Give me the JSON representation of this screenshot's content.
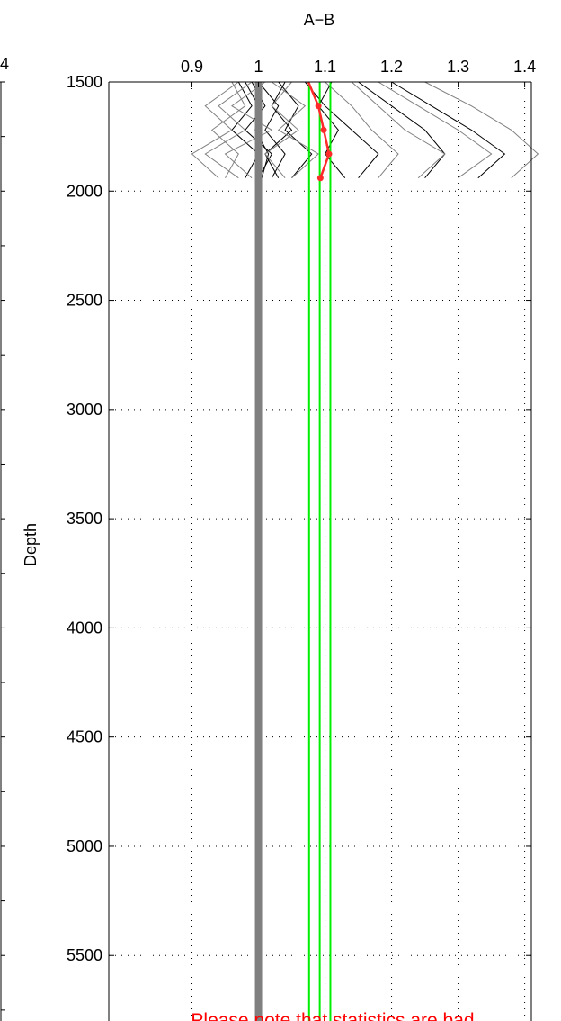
{
  "chart_data": {
    "type": "line",
    "title": "A−B",
    "xlabel": "",
    "ylabel": "Depth",
    "xlim": [
      0.775,
      1.41
    ],
    "ylim": [
      1500,
      5800
    ],
    "y_reversed": true,
    "x_axis_position": "top",
    "xticks": [
      0.9,
      1,
      1.1,
      1.2,
      1.3,
      1.4
    ],
    "xtick_labels": [
      "0.9",
      "1",
      "1.1",
      "1.2",
      "1.3",
      "1.4"
    ],
    "yticks": [
      1500,
      2000,
      2500,
      3000,
      3500,
      4000,
      4500,
      5000,
      5500
    ],
    "ytick_labels": [
      "1500",
      "2000",
      "2500",
      "3000",
      "3500",
      "4000",
      "4500",
      "5000",
      "5500"
    ],
    "grid": true,
    "left_panel_tick_label": "4",
    "note": "Please note that statistics are bad",
    "reference_lines": [
      {
        "x": 1.0,
        "color": "#808080"
      },
      {
        "x": 1.076,
        "color": "#00ee00"
      },
      {
        "x": 1.092,
        "color": "#00ee00"
      },
      {
        "x": 1.108,
        "color": "#00ee00"
      }
    ],
    "mean_profile": {
      "color": "#ff2a2a",
      "depth": [
        1500,
        1610,
        1720,
        1830,
        1940
      ],
      "x": [
        1.075,
        1.09,
        1.098,
        1.106,
        1.093
      ]
    },
    "individual_profiles": [
      {
        "color": "#000000",
        "depth": [
          1500,
          1610,
          1720,
          1830,
          1940
        ],
        "x": [
          0.99,
          1.01,
          0.98,
          1.02,
          1.0
        ]
      },
      {
        "color": "#000000",
        "depth": [
          1500,
          1610,
          1720,
          1830,
          1940
        ],
        "x": [
          1.03,
          1.06,
          1.04,
          1.08,
          1.05
        ]
      },
      {
        "color": "#000000",
        "depth": [
          1500,
          1610,
          1720,
          1830,
          1940
        ],
        "x": [
          1.11,
          1.09,
          1.12,
          1.1,
          1.13
        ]
      },
      {
        "color": "#000000",
        "depth": [
          1500,
          1610,
          1720,
          1830,
          1940
        ],
        "x": [
          1.04,
          1.02,
          1.05,
          1.01,
          1.03
        ]
      },
      {
        "color": "#000000",
        "depth": [
          1500,
          1610,
          1720,
          1830,
          1940
        ],
        "x": [
          0.97,
          0.99,
          0.96,
          1.0,
          0.98
        ]
      },
      {
        "color": "#000000",
        "depth": [
          1500,
          1610,
          1720,
          1830,
          1940
        ],
        "x": [
          1.15,
          1.2,
          1.25,
          1.28,
          1.25
        ]
      },
      {
        "color": "#000000",
        "depth": [
          1500,
          1610,
          1720,
          1830,
          1940
        ],
        "x": [
          1.2,
          1.26,
          1.32,
          1.37,
          1.33
        ]
      },
      {
        "color": "#000000",
        "depth": [
          1500,
          1610,
          1720,
          1830,
          1940
        ],
        "x": [
          1.07,
          1.1,
          1.14,
          1.18,
          1.15
        ]
      },
      {
        "color": "#000000",
        "depth": [
          1500,
          1610,
          1720,
          1830,
          1940
        ],
        "x": [
          1.0,
          1.03,
          1.01,
          1.04,
          1.02
        ]
      },
      {
        "color": "#000000",
        "depth": [
          1500,
          1610,
          1720,
          1830,
          1940
        ],
        "x": [
          0.98,
          1.0,
          0.995,
          1.015,
          1.005
        ]
      },
      {
        "color": "#808080",
        "depth": [
          1500,
          1610,
          1720,
          1830,
          1940
        ],
        "x": [
          0.97,
          0.92,
          0.96,
          0.9,
          0.94
        ]
      },
      {
        "color": "#808080",
        "depth": [
          1500,
          1610,
          1720,
          1830,
          1940
        ],
        "x": [
          1.01,
          0.96,
          1.02,
          0.95,
          0.99
        ]
      },
      {
        "color": "#808080",
        "depth": [
          1500,
          1610,
          1720,
          1830,
          1940
        ],
        "x": [
          1.05,
          1.02,
          1.06,
          1.01,
          1.04
        ]
      },
      {
        "color": "#808080",
        "depth": [
          1500,
          1610,
          1720,
          1830,
          1940
        ],
        "x": [
          1.18,
          1.24,
          1.3,
          1.35,
          1.3
        ]
      },
      {
        "color": "#808080",
        "depth": [
          1500,
          1610,
          1720,
          1830,
          1940
        ],
        "x": [
          1.25,
          1.32,
          1.38,
          1.42,
          1.38
        ]
      },
      {
        "color": "#808080",
        "depth": [
          1500,
          1610,
          1720,
          1830,
          1940
        ],
        "x": [
          1.14,
          1.18,
          1.22,
          1.28,
          1.24
        ]
      },
      {
        "color": "#808080",
        "depth": [
          1500,
          1610,
          1720,
          1830,
          1940
        ],
        "x": [
          0.99,
          0.94,
          0.98,
          0.92,
          0.97
        ]
      },
      {
        "color": "#808080",
        "depth": [
          1500,
          1610,
          1720,
          1830,
          1940
        ],
        "x": [
          1.02,
          1.07,
          1.03,
          1.09,
          1.05
        ]
      },
      {
        "color": "#808080",
        "depth": [
          1500,
          1610,
          1720,
          1830,
          1940
        ],
        "x": [
          1.1,
          1.14,
          1.17,
          1.21,
          1.18
        ]
      },
      {
        "color": "#808080",
        "depth": [
          1500,
          1610,
          1720,
          1830,
          1940
        ],
        "x": [
          0.96,
          0.98,
          0.93,
          0.97,
          0.95
        ]
      }
    ]
  }
}
